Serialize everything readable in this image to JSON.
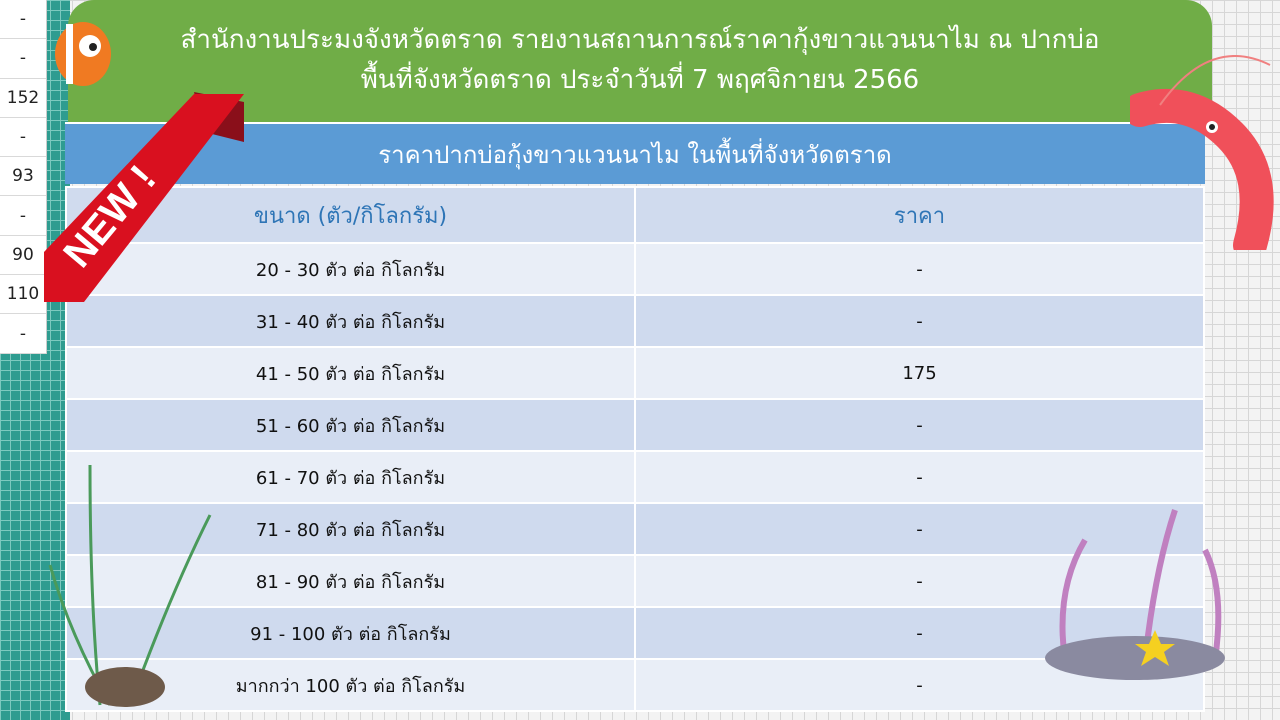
{
  "side_values": [
    "-",
    "-",
    "152",
    "-",
    "93",
    "-",
    "90",
    "110",
    "-"
  ],
  "header": {
    "line1": "สำนักงานประมงจังหวัดตราด รายงานสถานการณ์ราคากุ้งขาวแวนนาไม ณ ปากบ่อ",
    "line2": "พื้นที่จังหวัดตราด ประจำวันที่ 7 พฤศจิกายน 2566"
  },
  "subheader": "ราคาปากบ่อกุ้งขาวแวนนาไม ในพื้นที่จังหวัดตราด",
  "badge": "NEW !",
  "table": {
    "headers": [
      "ขนาด (ตัว/กิโลกรัม)",
      "ราคา"
    ],
    "rows": [
      [
        "20 - 30 ตัว ต่อ กิโลกรัม",
        "-"
      ],
      [
        "31 - 40 ตัว ต่อ กิโลกรัม",
        "-"
      ],
      [
        "41 - 50 ตัว ต่อ กิโลกรัม",
        "175"
      ],
      [
        "51 - 60 ตัว ต่อ กิโลกรัม",
        "-"
      ],
      [
        "61 - 70 ตัว ต่อ กิโลกรัม",
        "-"
      ],
      [
        "71 - 80 ตัว ต่อ กิโลกรัม",
        "-"
      ],
      [
        "81 - 90 ตัว ต่อ กิโลกรัม",
        "-"
      ],
      [
        "91 - 100 ตัว ต่อ กิโลกรัม",
        "-"
      ],
      [
        "มากกว่า 100 ตัว ต่อ กิโลกรัม",
        "-"
      ]
    ]
  },
  "colors": {
    "header": "#70ad47",
    "subheader": "#5b9bd5",
    "header_text": "#2e75b6",
    "ribbon": "#d9101f"
  }
}
